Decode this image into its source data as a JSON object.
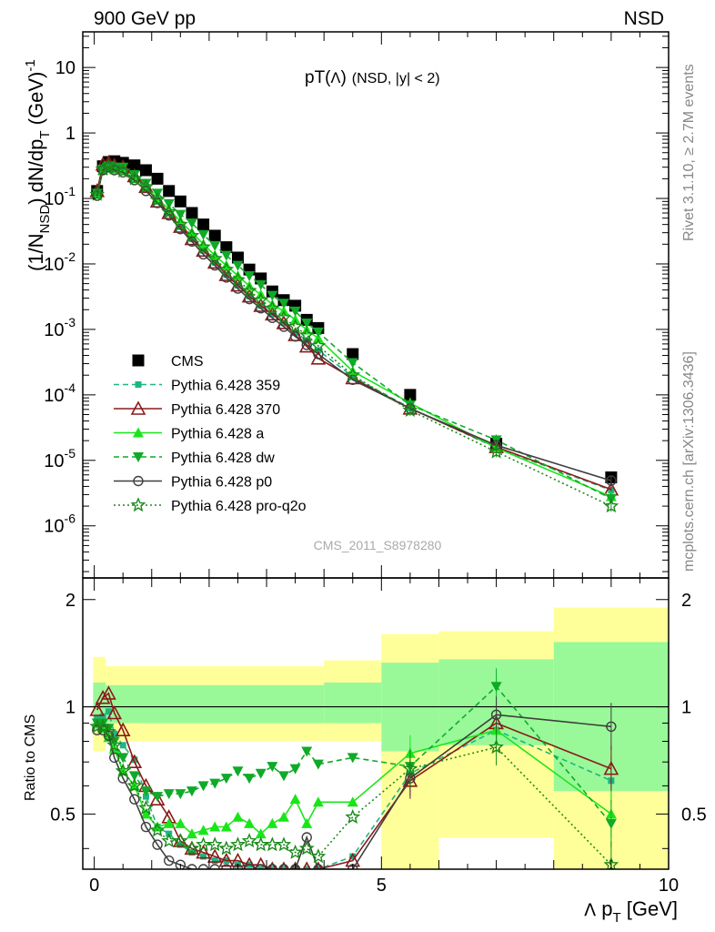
{
  "header": {
    "left": "900 GeV pp",
    "right": "NSD"
  },
  "side": {
    "rivet": "Rivet 3.1.10, ≥ 2.7M events",
    "mcplots": "mcplots.cern.ch [arXiv:1306.3436]"
  },
  "chart_data": [
    {
      "type": "scatter",
      "title": "pT(Λ) (NSD, |y| < 2)",
      "watermark": "CMS_2011_S8978280",
      "ylabel": "(1/N_NSD) dN/dp_T (GeV)^-1",
      "xlim": [
        -0.2,
        10.0
      ],
      "ylim": [
        1.6e-07,
        35
      ],
      "yscale": "log",
      "y_ticks": [
        "10^-6",
        "10^-5",
        "10^-4",
        "10^-3",
        "10^-2",
        "10^-1",
        "1",
        "10"
      ],
      "legend_position": "lower-left",
      "series": [
        {
          "name": "CMS",
          "color": "#000000",
          "marker": "square",
          "line": "none",
          "x": [
            0.05,
            0.15,
            0.25,
            0.35,
            0.5,
            0.7,
            0.9,
            1.1,
            1.3,
            1.5,
            1.7,
            1.9,
            2.1,
            2.3,
            2.5,
            2.7,
            2.9,
            3.1,
            3.3,
            3.5,
            3.7,
            3.9,
            4.5,
            5.5,
            7.0,
            9.0
          ],
          "y": [
            0.13,
            0.31,
            0.36,
            0.37,
            0.35,
            0.32,
            0.27,
            0.2,
            0.13,
            0.09,
            0.06,
            0.04,
            0.027,
            0.018,
            0.0125,
            0.0082,
            0.006,
            0.0038,
            0.0028,
            0.0023,
            0.0014,
            0.00105,
            0.00042,
            0.0001,
            1.8e-05,
            5.5e-06
          ]
        },
        {
          "name": "Pythia 6.428 359",
          "color": "#1fb583",
          "marker": "square-small",
          "line": "dashed",
          "x": [
            0.05,
            0.15,
            0.25,
            0.35,
            0.5,
            0.7,
            0.9,
            1.1,
            1.3,
            1.5,
            1.7,
            1.9,
            2.1,
            2.3,
            2.5,
            2.7,
            2.9,
            3.1,
            3.3,
            3.5,
            3.7,
            3.9,
            4.5,
            5.5,
            7.0,
            9.0
          ],
          "y": [
            0.12,
            0.29,
            0.3,
            0.3,
            0.28,
            0.22,
            0.15,
            0.09,
            0.06,
            0.037,
            0.024,
            0.016,
            0.0105,
            0.0068,
            0.0047,
            0.0032,
            0.0023,
            0.0017,
            0.00125,
            0.0009,
            0.00068,
            0.00048,
            0.00019,
            6.3e-05,
            1.55e-05,
            3.5e-06
          ]
        },
        {
          "name": "Pythia 6.428 370",
          "color": "#8b1a1a",
          "marker": "triangle-open",
          "line": "solid",
          "x": [
            0.05,
            0.15,
            0.25,
            0.35,
            0.5,
            0.7,
            0.9,
            1.1,
            1.3,
            1.5,
            1.7,
            1.9,
            2.1,
            2.3,
            2.5,
            2.7,
            2.9,
            3.1,
            3.3,
            3.5,
            3.7,
            3.9,
            4.5,
            5.5,
            7.0,
            9.0
          ],
          "y": [
            0.13,
            0.33,
            0.35,
            0.32,
            0.3,
            0.22,
            0.15,
            0.09,
            0.06,
            0.037,
            0.024,
            0.016,
            0.0105,
            0.0068,
            0.0047,
            0.0032,
            0.0023,
            0.0017,
            0.00125,
            0.00082,
            0.00055,
            0.00036,
            0.00018,
            6.2e-05,
            1.6e-05,
            3.6e-06
          ]
        },
        {
          "name": "Pythia 6.428 a",
          "color": "#19e619",
          "marker": "triangle",
          "line": "solid",
          "x": [
            0.05,
            0.15,
            0.25,
            0.35,
            0.5,
            0.7,
            0.9,
            1.1,
            1.3,
            1.5,
            1.7,
            1.9,
            2.1,
            2.3,
            2.5,
            2.7,
            2.9,
            3.1,
            3.3,
            3.5,
            3.7,
            3.9,
            4.5,
            5.5,
            7.0,
            9.0
          ],
          "y": [
            0.115,
            0.27,
            0.29,
            0.28,
            0.27,
            0.2,
            0.15,
            0.1,
            0.068,
            0.045,
            0.03,
            0.02,
            0.0135,
            0.0095,
            0.0066,
            0.0046,
            0.0034,
            0.0024,
            0.0019,
            0.0014,
            0.00098,
            0.00073,
            0.00023,
            7.5e-05,
            1.55e-05,
            2.8e-06
          ]
        },
        {
          "name": "Pythia 6.428 dw",
          "color": "#0faa28",
          "marker": "triangle-down",
          "line": "dashed",
          "x": [
            0.05,
            0.15,
            0.25,
            0.35,
            0.5,
            0.7,
            0.9,
            1.1,
            1.3,
            1.5,
            1.7,
            1.9,
            2.1,
            2.3,
            2.5,
            2.7,
            2.9,
            3.1,
            3.3,
            3.5,
            3.7,
            3.9,
            4.5,
            5.5,
            7.0,
            9.0
          ],
          "y": [
            0.12,
            0.28,
            0.31,
            0.3,
            0.3,
            0.23,
            0.17,
            0.12,
            0.083,
            0.057,
            0.042,
            0.028,
            0.019,
            0.0135,
            0.0095,
            0.0066,
            0.0048,
            0.0033,
            0.0025,
            0.0019,
            0.00125,
            0.00091,
            0.00031,
            7e-05,
            2.05e-05,
            2.6e-06
          ]
        },
        {
          "name": "Pythia 6.428 p0",
          "color": "#3f3f3f",
          "marker": "circle-open",
          "line": "solid",
          "x": [
            0.05,
            0.15,
            0.25,
            0.35,
            0.5,
            0.7,
            0.9,
            1.1,
            1.3,
            1.5,
            1.7,
            1.9,
            2.1,
            2.3,
            2.5,
            2.7,
            2.9,
            3.1,
            3.3,
            3.5,
            3.7,
            3.9,
            4.5,
            5.5,
            7.0,
            9.0
          ],
          "y": [
            0.11,
            0.27,
            0.3,
            0.27,
            0.25,
            0.19,
            0.13,
            0.085,
            0.055,
            0.034,
            0.022,
            0.014,
            0.0095,
            0.0062,
            0.0042,
            0.0029,
            0.0021,
            0.0015,
            0.0011,
            0.00078,
            0.00058,
            0.00042,
            0.00017,
            6.2e-05,
            1.7e-05,
            4.9e-06
          ]
        },
        {
          "name": "Pythia 6.428 pro-q2o",
          "color": "#1a8a1a",
          "marker": "star-open",
          "line": "dotted",
          "x": [
            0.05,
            0.15,
            0.25,
            0.35,
            0.5,
            0.7,
            0.9,
            1.1,
            1.3,
            1.5,
            1.7,
            1.9,
            2.1,
            2.3,
            2.5,
            2.7,
            2.9,
            3.1,
            3.3,
            3.5,
            3.7,
            3.9,
            4.5,
            5.5,
            7.0,
            9.0
          ],
          "y": [
            0.115,
            0.28,
            0.31,
            0.29,
            0.26,
            0.2,
            0.15,
            0.095,
            0.062,
            0.04,
            0.027,
            0.018,
            0.012,
            0.0082,
            0.0057,
            0.0039,
            0.0028,
            0.0021,
            0.0015,
            0.0011,
            0.00082,
            0.00056,
            0.0002,
            5.8e-05,
            1.35e-05,
            2e-06
          ]
        }
      ]
    },
    {
      "type": "scatter",
      "ylabel": "Ratio to CMS",
      "xlabel": "Λ p_T [GeV]",
      "xlim": [
        -0.2,
        10.0
      ],
      "ylim": [
        0.35,
        2.3
      ],
      "yscale": "log",
      "x_ticks": [
        "0",
        "5",
        "10"
      ],
      "y_ticks": [
        "0.5",
        "1",
        "2"
      ],
      "bands": [
        {
          "x0": -0.02,
          "x1": 0.2,
          "yellow": [
            0.75,
            1.38
          ],
          "green": [
            0.86,
            1.17
          ]
        },
        {
          "x0": 0.2,
          "x1": 4.0,
          "yellow": [
            0.8,
            1.3
          ],
          "green": [
            0.9,
            1.15
          ]
        },
        {
          "x0": 4.0,
          "x1": 5.0,
          "yellow": [
            0.8,
            1.35
          ],
          "green": [
            0.9,
            1.17
          ]
        },
        {
          "x0": 5.0,
          "x1": 6.0,
          "yellow": [
            0.35,
            1.6
          ],
          "green": [
            0.75,
            1.33
          ]
        },
        {
          "x0": 6.0,
          "x1": 8.0,
          "yellow": [
            0.43,
            1.63
          ],
          "green": [
            0.78,
            1.36
          ]
        },
        {
          "x0": 8.0,
          "x1": 10.0,
          "yellow": [
            0.35,
            1.9
          ],
          "green": [
            0.58,
            1.52
          ]
        }
      ],
      "series": [
        {
          "name": "Pythia 6.428 359",
          "color": "#1fb583",
          "marker": "square-small",
          "line": "dashed",
          "x": [
            0.05,
            0.15,
            0.25,
            0.35,
            0.5,
            0.7,
            0.9,
            1.1,
            1.3,
            1.5,
            1.7,
            1.9,
            2.1,
            2.3,
            2.5,
            2.7,
            2.9,
            3.1,
            3.3,
            3.5,
            3.7,
            3.9,
            4.5,
            5.5,
            7.0,
            9.0
          ],
          "y": [
            0.93,
            0.94,
            0.97,
            0.84,
            0.78,
            0.71,
            0.56,
            0.46,
            0.44,
            0.41,
            0.39,
            0.38,
            0.37,
            0.37,
            0.36,
            0.36,
            0.35,
            0.35,
            0.35,
            0.35,
            0.35,
            0.35,
            0.38,
            0.65,
            0.86,
            0.62
          ]
        },
        {
          "name": "Pythia 6.428 370",
          "color": "#8b1a1a",
          "marker": "triangle-open",
          "line": "solid",
          "x": [
            0.05,
            0.15,
            0.25,
            0.35,
            0.5,
            0.7,
            0.9,
            1.1,
            1.3,
            1.5,
            1.7,
            1.9,
            2.1,
            2.3,
            2.5,
            2.7,
            2.9,
            3.1,
            3.3,
            3.5,
            3.7,
            3.9,
            4.5,
            5.5,
            7.0,
            9.0
          ],
          "y": [
            0.98,
            1.06,
            1.09,
            0.96,
            0.86,
            0.7,
            0.6,
            0.55,
            0.49,
            0.42,
            0.4,
            0.39,
            0.38,
            0.37,
            0.37,
            0.36,
            0.36,
            0.35,
            0.35,
            0.35,
            0.35,
            0.35,
            0.37,
            0.62,
            0.9,
            0.67
          ]
        },
        {
          "name": "Pythia 6.428 a",
          "color": "#19e619",
          "marker": "triangle",
          "line": "solid",
          "x": [
            0.05,
            0.15,
            0.25,
            0.35,
            0.5,
            0.7,
            0.9,
            1.1,
            1.3,
            1.5,
            1.7,
            1.9,
            2.1,
            2.3,
            2.5,
            2.7,
            2.9,
            3.1,
            3.3,
            3.5,
            3.7,
            3.9,
            4.5,
            5.5,
            7.0,
            9.0
          ],
          "y": [
            0.9,
            0.87,
            0.82,
            0.76,
            0.66,
            0.6,
            0.5,
            0.46,
            0.47,
            0.47,
            0.44,
            0.45,
            0.46,
            0.46,
            0.49,
            0.47,
            0.44,
            0.47,
            0.49,
            0.55,
            0.47,
            0.54,
            0.54,
            0.74,
            0.86,
            0.5
          ]
        },
        {
          "name": "Pythia 6.428 dw",
          "color": "#0faa28",
          "marker": "triangle-down",
          "line": "dashed",
          "x": [
            0.05,
            0.15,
            0.25,
            0.35,
            0.5,
            0.7,
            0.9,
            1.1,
            1.3,
            1.5,
            1.7,
            1.9,
            2.1,
            2.3,
            2.5,
            2.7,
            2.9,
            3.1,
            3.3,
            3.5,
            3.7,
            3.9,
            4.5,
            5.5,
            7.0,
            9.0
          ],
          "y": [
            0.9,
            0.9,
            0.87,
            0.8,
            0.72,
            0.64,
            0.58,
            0.56,
            0.57,
            0.57,
            0.58,
            0.6,
            0.61,
            0.63,
            0.66,
            0.63,
            0.65,
            0.68,
            0.64,
            0.67,
            0.75,
            0.69,
            0.72,
            0.68,
            1.14,
            0.47
          ]
        },
        {
          "name": "Pythia 6.428 p0",
          "color": "#3f3f3f",
          "marker": "circle-open",
          "line": "solid",
          "x": [
            0.05,
            0.15,
            0.25,
            0.35,
            0.5,
            0.7,
            0.9,
            1.1,
            1.3,
            1.5,
            1.7,
            1.9,
            2.1,
            2.3,
            2.5,
            2.7,
            2.9,
            3.1,
            3.3,
            3.5,
            3.7,
            3.9,
            4.5,
            5.5,
            7.0,
            9.0
          ],
          "y": [
            0.86,
            0.86,
            0.83,
            0.72,
            0.63,
            0.55,
            0.46,
            0.41,
            0.37,
            0.36,
            0.35,
            0.35,
            0.35,
            0.35,
            0.35,
            0.35,
            0.35,
            0.35,
            0.35,
            0.35,
            0.43,
            0.35,
            0.35,
            0.63,
            0.95,
            0.88
          ]
        },
        {
          "name": "Pythia 6.428 pro-q2o",
          "color": "#1a8a1a",
          "marker": "star-open",
          "line": "dotted",
          "x": [
            0.05,
            0.15,
            0.25,
            0.35,
            0.5,
            0.7,
            0.9,
            1.1,
            1.3,
            1.5,
            1.7,
            1.9,
            2.1,
            2.3,
            2.5,
            2.7,
            2.9,
            3.1,
            3.3,
            3.5,
            3.7,
            3.9,
            4.5,
            5.5,
            7.0,
            9.0
          ],
          "y": [
            0.88,
            0.88,
            0.85,
            0.78,
            0.66,
            0.6,
            0.52,
            0.45,
            0.42,
            0.42,
            0.4,
            0.41,
            0.41,
            0.4,
            0.41,
            0.42,
            0.41,
            0.41,
            0.41,
            0.39,
            0.4,
            0.38,
            0.49,
            0.67,
            0.77,
            0.36
          ]
        }
      ]
    }
  ]
}
